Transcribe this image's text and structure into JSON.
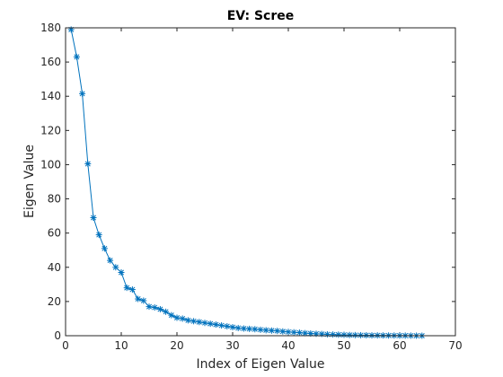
{
  "chart_data": {
    "type": "line",
    "title": "EV: Scree",
    "xlabel": "Index of Eigen Value",
    "ylabel": "Eigen Value",
    "xlim": [
      0,
      70
    ],
    "ylim": [
      0,
      180
    ],
    "xticks": [
      0,
      10,
      20,
      30,
      40,
      50,
      60,
      70
    ],
    "yticks": [
      0,
      20,
      40,
      60,
      80,
      100,
      120,
      140,
      160,
      180
    ],
    "grid": false,
    "marker": "asterisk",
    "line_color": "#0072BD",
    "series": [
      {
        "x": [
          1,
          2,
          3,
          4,
          5,
          6,
          7,
          8,
          9,
          10,
          11,
          12,
          13,
          14,
          15,
          16,
          17,
          18,
          19,
          20,
          21,
          22,
          23,
          24,
          25,
          26,
          27,
          28,
          29,
          30,
          31,
          32,
          33,
          34,
          35,
          36,
          37,
          38,
          39,
          40,
          41,
          42,
          43,
          44,
          45,
          46,
          47,
          48,
          49,
          50,
          51,
          52,
          53,
          54,
          55,
          56,
          57,
          58,
          59,
          60,
          61,
          62,
          63,
          64
        ],
        "values": [
          179,
          163,
          141.5,
          100.5,
          69,
          59,
          51,
          44,
          40,
          37,
          28,
          27,
          21.5,
          20.5,
          17,
          16.5,
          15.5,
          14,
          12,
          10.5,
          10,
          9,
          8.5,
          8,
          7.5,
          7,
          6.5,
          6,
          5.5,
          5,
          4.5,
          4.2,
          4,
          3.8,
          3.5,
          3.2,
          3,
          2.8,
          2.5,
          2.2,
          2,
          1.8,
          1.5,
          1.3,
          1.1,
          1,
          0.8,
          0.7,
          0.6,
          0.5,
          0.4,
          0.35,
          0.3,
          0.25,
          0.2,
          0.18,
          0.15,
          0.12,
          0.1,
          0.08,
          0.06,
          0.04,
          0.02,
          0.01
        ]
      }
    ]
  }
}
